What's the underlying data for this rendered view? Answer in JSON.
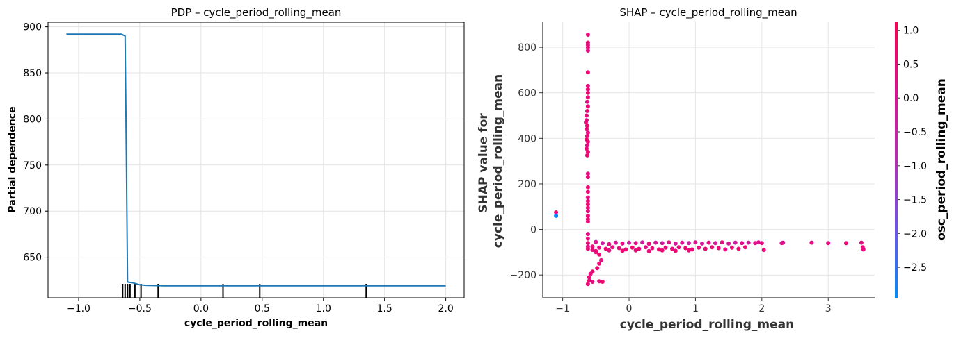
{
  "chart_data": [
    {
      "type": "line",
      "title": "PDP – cycle_period_rolling_mean",
      "xlabel": "cycle_period_rolling_mean",
      "ylabel": "Partial dependence",
      "xlim": [
        -1.25,
        2.15
      ],
      "ylim": [
        606,
        905
      ],
      "xticks": [
        -1.0,
        -0.5,
        0.0,
        0.5,
        1.0,
        1.5,
        2.0
      ],
      "xtick_labels": [
        "−1.0",
        "−0.5",
        "0.0",
        "0.5",
        "1.0",
        "1.5",
        "2.0"
      ],
      "yticks": [
        650,
        700,
        750,
        800,
        850,
        900
      ],
      "ytick_labels": [
        "650",
        "700",
        "750",
        "800",
        "850",
        "900"
      ],
      "grid": true,
      "series": [
        {
          "color": "#1f77b4",
          "x": [
            -1.1,
            -0.7,
            -0.65,
            -0.62,
            -0.61,
            -0.6,
            -0.55,
            -0.5,
            -0.45,
            -0.3,
            0.0,
            0.5,
            1.0,
            1.5,
            2.0
          ],
          "y": [
            892,
            892,
            892,
            890,
            760,
            623,
            622,
            620,
            619.5,
            619,
            619,
            619,
            619,
            619,
            619
          ]
        }
      ],
      "rug_x": [
        -0.64,
        -0.62,
        -0.6,
        -0.58,
        -0.54,
        -0.49,
        -0.35,
        0.18,
        0.48,
        1.35
      ]
    },
    {
      "type": "scatter",
      "title": "SHAP – cycle_period_rolling_mean",
      "xlabel": "cycle_period_rolling_mean",
      "ylabel": "SHAP value for\ncycle_period_rolling_mean",
      "xlim": [
        -1.3,
        3.7
      ],
      "ylim": [
        -300,
        910
      ],
      "xticks": [
        -1,
        0,
        1,
        2,
        3
      ],
      "xtick_labels": [
        "−1",
        "0",
        "1",
        "2",
        "3"
      ],
      "yticks": [
        -200,
        0,
        200,
        400,
        600,
        800
      ],
      "ytick_labels": [
        "−200",
        "0",
        "200",
        "400",
        "600",
        "800"
      ],
      "grid": true,
      "colorbar": {
        "label": "osc_period_rolling_mean",
        "range": [
          -2.95,
          1.12
        ],
        "ticks": [
          1.0,
          0.5,
          0.0,
          -0.5,
          -1.0,
          -1.5,
          -2.0,
          -2.5
        ],
        "tick_labels": [
          "1.0",
          "0.5",
          "0.0",
          "−0.5",
          "−1.0",
          "−1.5",
          "−2.0",
          "−2.5"
        ],
        "colors": [
          "#008afb",
          "#6f53e8",
          "#b42db4",
          "#dd1191",
          "#ff0052"
        ]
      },
      "points": [
        {
          "x": -1.1,
          "y": 75,
          "c": 0.5
        },
        {
          "x": -1.1,
          "y": 60,
          "c": -2.9
        },
        {
          "x": -0.62,
          "y": 855,
          "c": 0.5
        },
        {
          "x": -0.62,
          "y": 820,
          "c": 0.6
        },
        {
          "x": -0.62,
          "y": 810,
          "c": 0.4
        },
        {
          "x": -0.62,
          "y": 800,
          "c": 0.5
        },
        {
          "x": -0.62,
          "y": 785,
          "c": 0.3
        },
        {
          "x": -0.62,
          "y": 690,
          "c": 0.6
        },
        {
          "x": -0.62,
          "y": 630,
          "c": 0.4
        },
        {
          "x": -0.62,
          "y": 615,
          "c": 0.5
        },
        {
          "x": -0.62,
          "y": 600,
          "c": 0.6
        },
        {
          "x": -0.62,
          "y": 580,
          "c": 0.5
        },
        {
          "x": -0.63,
          "y": 560,
          "c": 0.4
        },
        {
          "x": -0.62,
          "y": 540,
          "c": 0.5
        },
        {
          "x": -0.63,
          "y": 520,
          "c": 0.6
        },
        {
          "x": -0.64,
          "y": 500,
          "c": 0.5
        },
        {
          "x": -0.64,
          "y": 480,
          "c": 0.4
        },
        {
          "x": -0.65,
          "y": 470,
          "c": 0.5
        },
        {
          "x": -0.63,
          "y": 455,
          "c": 0.6
        },
        {
          "x": -0.64,
          "y": 440,
          "c": 0.5
        },
        {
          "x": -0.62,
          "y": 425,
          "c": 0.4
        },
        {
          "x": -0.63,
          "y": 410,
          "c": 0.5
        },
        {
          "x": -0.64,
          "y": 395,
          "c": 0.6
        },
        {
          "x": -0.62,
          "y": 385,
          "c": 0.5
        },
        {
          "x": -0.63,
          "y": 370,
          "c": 0.4
        },
        {
          "x": -0.64,
          "y": 355,
          "c": 0.5
        },
        {
          "x": -0.62,
          "y": 340,
          "c": 0.6
        },
        {
          "x": -0.63,
          "y": 325,
          "c": 0.5
        },
        {
          "x": -0.62,
          "y": 245,
          "c": 0.4
        },
        {
          "x": -0.62,
          "y": 230,
          "c": 0.5
        },
        {
          "x": -0.62,
          "y": 185,
          "c": 0.6
        },
        {
          "x": -0.62,
          "y": 165,
          "c": 0.5
        },
        {
          "x": -0.62,
          "y": 140,
          "c": 0.4
        },
        {
          "x": -0.62,
          "y": 125,
          "c": 0.5
        },
        {
          "x": -0.62,
          "y": 110,
          "c": 0.6
        },
        {
          "x": -0.62,
          "y": 95,
          "c": 0.5
        },
        {
          "x": -0.62,
          "y": 80,
          "c": 0.4
        },
        {
          "x": -0.62,
          "y": 60,
          "c": 0.5
        },
        {
          "x": -0.62,
          "y": 45,
          "c": 0.6
        },
        {
          "x": -0.62,
          "y": 35,
          "c": 0.5
        },
        {
          "x": -0.62,
          "y": -20,
          "c": 0.3
        },
        {
          "x": -0.62,
          "y": -40,
          "c": 0.4
        },
        {
          "x": -0.62,
          "y": -60,
          "c": 0.5
        },
        {
          "x": -0.62,
          "y": -75,
          "c": 0.2
        },
        {
          "x": -0.62,
          "y": -85,
          "c": 0.5
        },
        {
          "x": -0.55,
          "y": -90,
          "c": 0.4
        },
        {
          "x": -0.5,
          "y": -100,
          "c": 0.6
        },
        {
          "x": -0.45,
          "y": -110,
          "c": 0.5
        },
        {
          "x": -0.42,
          "y": -135,
          "c": 0.4
        },
        {
          "x": -0.45,
          "y": -150,
          "c": 0.5
        },
        {
          "x": -0.48,
          "y": -170,
          "c": 0.6
        },
        {
          "x": -0.55,
          "y": -185,
          "c": 0.5
        },
        {
          "x": -0.58,
          "y": -195,
          "c": 0.4
        },
        {
          "x": -0.6,
          "y": -210,
          "c": 0.5
        },
        {
          "x": -0.6,
          "y": -225,
          "c": 0.6
        },
        {
          "x": -0.62,
          "y": -240,
          "c": 0.5
        },
        {
          "x": -0.55,
          "y": -230,
          "c": 0.4
        },
        {
          "x": -0.45,
          "y": -228,
          "c": 0.5
        },
        {
          "x": -0.4,
          "y": -230,
          "c": 0.6
        },
        {
          "x": -0.5,
          "y": -55,
          "c": 0.0
        },
        {
          "x": -0.4,
          "y": -60,
          "c": -0.2
        },
        {
          "x": -0.3,
          "y": -65,
          "c": 0.4
        },
        {
          "x": -0.2,
          "y": -58,
          "c": -0.1
        },
        {
          "x": -0.1,
          "y": -62,
          "c": 0.3
        },
        {
          "x": 0.0,
          "y": -58,
          "c": -0.3
        },
        {
          "x": 0.1,
          "y": -60,
          "c": 0.2
        },
        {
          "x": 0.2,
          "y": -57,
          "c": -0.2
        },
        {
          "x": 0.3,
          "y": -63,
          "c": 0.4
        },
        {
          "x": 0.4,
          "y": -58,
          "c": 0.0
        },
        {
          "x": 0.5,
          "y": -60,
          "c": -0.3
        },
        {
          "x": 0.6,
          "y": -57,
          "c": 0.3
        },
        {
          "x": 0.7,
          "y": -62,
          "c": -0.1
        },
        {
          "x": 0.8,
          "y": -58,
          "c": 0.2
        },
        {
          "x": 0.9,
          "y": -60,
          "c": -0.4
        },
        {
          "x": 1.0,
          "y": -57,
          "c": 0.1
        },
        {
          "x": 1.1,
          "y": -62,
          "c": -0.2
        },
        {
          "x": 1.2,
          "y": -58,
          "c": 0.3
        },
        {
          "x": 1.3,
          "y": -60,
          "c": -0.1
        },
        {
          "x": 1.4,
          "y": -57,
          "c": 0.4
        },
        {
          "x": 1.5,
          "y": -62,
          "c": 0.0
        },
        {
          "x": 1.6,
          "y": -58,
          "c": -0.3
        },
        {
          "x": 1.7,
          "y": -60,
          "c": 0.2
        },
        {
          "x": 1.8,
          "y": -58,
          "c": -0.2
        },
        {
          "x": 1.9,
          "y": -60,
          "c": 0.3
        },
        {
          "x": 1.95,
          "y": -57,
          "c": 0.1
        },
        {
          "x": 2.0,
          "y": -60,
          "c": 0.4
        },
        {
          "x": 2.3,
          "y": -60,
          "c": -0.1
        },
        {
          "x": 2.32,
          "y": -58,
          "c": 0.2
        },
        {
          "x": 2.75,
          "y": -58,
          "c": 0.4
        },
        {
          "x": 3.0,
          "y": -60,
          "c": 0.3
        },
        {
          "x": 3.27,
          "y": -60,
          "c": 0.5
        },
        {
          "x": 3.5,
          "y": -58,
          "c": 0.3
        },
        {
          "x": 3.52,
          "y": -78,
          "c": 0.5
        },
        {
          "x": 3.53,
          "y": -88,
          "c": 0.4
        },
        {
          "x": -0.55,
          "y": -75,
          "c": 0.5
        },
        {
          "x": -0.45,
          "y": -80,
          "c": 0.4
        },
        {
          "x": -0.35,
          "y": -85,
          "c": 0.6
        },
        {
          "x": -0.25,
          "y": -78,
          "c": 0.5
        },
        {
          "x": -0.15,
          "y": -82,
          "c": 0.4
        },
        {
          "x": -0.05,
          "y": -88,
          "c": 0.5
        },
        {
          "x": 0.05,
          "y": -80,
          "c": 0.6
        },
        {
          "x": 0.15,
          "y": -85,
          "c": 0.5
        },
        {
          "x": 0.25,
          "y": -78,
          "c": 0.4
        },
        {
          "x": 0.35,
          "y": -82,
          "c": 0.5
        },
        {
          "x": 0.45,
          "y": -88,
          "c": 0.6
        },
        {
          "x": 0.55,
          "y": -80,
          "c": 0.5
        },
        {
          "x": 0.65,
          "y": -85,
          "c": 0.4
        },
        {
          "x": 0.75,
          "y": -78,
          "c": 0.5
        },
        {
          "x": 0.85,
          "y": -82,
          "c": 0.6
        },
        {
          "x": 0.95,
          "y": -88,
          "c": 0.5
        },
        {
          "x": 1.05,
          "y": -80,
          "c": 0.4
        },
        {
          "x": 1.15,
          "y": -85,
          "c": 0.5
        },
        {
          "x": 1.25,
          "y": -78,
          "c": 0.6
        },
        {
          "x": 1.35,
          "y": -82,
          "c": 0.5
        },
        {
          "x": 1.45,
          "y": -88,
          "c": 0.4
        },
        {
          "x": 1.55,
          "y": -80,
          "c": 0.5
        },
        {
          "x": 1.65,
          "y": -85,
          "c": 0.6
        },
        {
          "x": 1.75,
          "y": -78,
          "c": 0.5
        },
        {
          "x": 2.03,
          "y": -90,
          "c": 0.5
        },
        {
          "x": -0.5,
          "y": -95,
          "c": 0.5
        },
        {
          "x": -0.3,
          "y": -92,
          "c": 0.4
        },
        {
          "x": -0.1,
          "y": -94,
          "c": 0.6
        },
        {
          "x": 0.1,
          "y": -92,
          "c": 0.5
        },
        {
          "x": 0.3,
          "y": -95,
          "c": 0.4
        },
        {
          "x": 0.5,
          "y": -92,
          "c": 0.5
        },
        {
          "x": 0.7,
          "y": -94,
          "c": 0.6
        },
        {
          "x": 0.9,
          "y": -92,
          "c": 0.5
        }
      ]
    }
  ]
}
